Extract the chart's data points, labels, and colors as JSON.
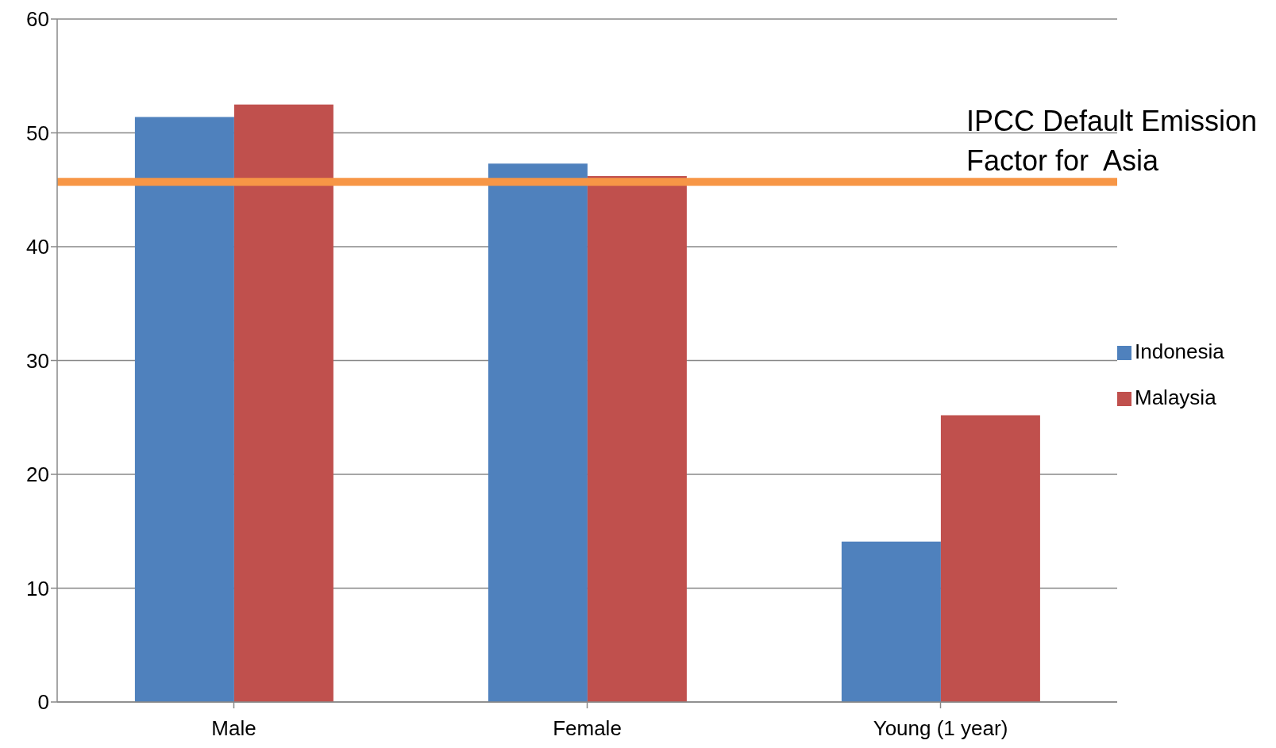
{
  "chart_data": {
    "type": "bar",
    "categories": [
      "Male",
      "Female",
      "Young (1 year)"
    ],
    "series": [
      {
        "name": "Indonesia",
        "color": "#4f81bd",
        "values": [
          51.4,
          47.3,
          14.1
        ]
      },
      {
        "name": "Malaysia",
        "color": "#c0504d",
        "values": [
          52.5,
          46.2,
          25.2
        ]
      }
    ],
    "ylim": [
      0,
      60
    ],
    "yticks": [
      0,
      10,
      20,
      30,
      40,
      50,
      60
    ],
    "grid": "y",
    "legend": "right",
    "ref_lines": [
      {
        "axis": "y",
        "value": 45.7,
        "label": "IPCC Default Emission Factor for  Asia",
        "color": "#f79646"
      }
    ]
  }
}
